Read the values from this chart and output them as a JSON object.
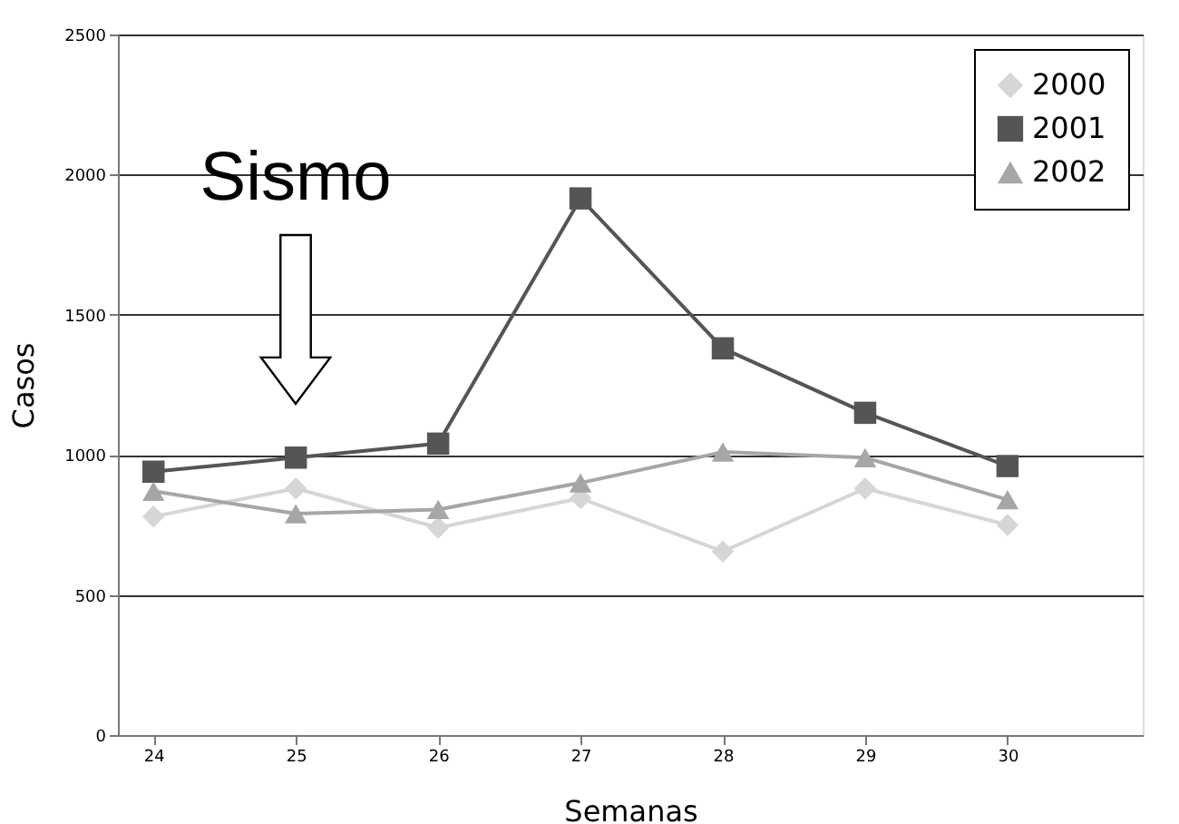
{
  "chart_data": {
    "type": "line",
    "xlabel": "Semanas",
    "ylabel": "Casos",
    "categories": [
      "24",
      "25",
      "26",
      "27",
      "28",
      "29",
      "30"
    ],
    "series": [
      {
        "name": "2000",
        "color": "#d6d6d6",
        "marker": "diamond",
        "values": [
          780,
          880,
          740,
          845,
          655,
          880,
          750
        ]
      },
      {
        "name": "2001",
        "color": "#555555",
        "marker": "square",
        "values": [
          940,
          990,
          1040,
          1915,
          1380,
          1150,
          960
        ]
      },
      {
        "name": "2002",
        "color": "#a6a6a6",
        "marker": "triangle",
        "values": [
          870,
          790,
          805,
          900,
          1010,
          990,
          840
        ]
      }
    ],
    "ylim": [
      0,
      2500
    ],
    "yticks": [
      0,
      500,
      1000,
      1500,
      2000,
      2500
    ],
    "grid": "y",
    "legend": "top right",
    "annotations": [
      "Sismo"
    ]
  }
}
